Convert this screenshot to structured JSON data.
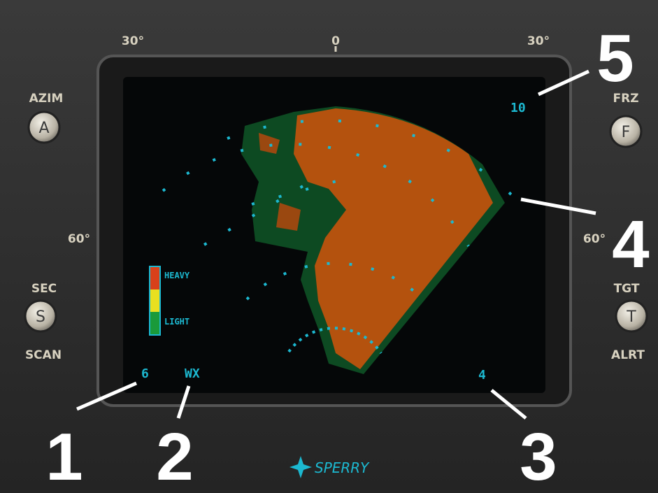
{
  "scale": {
    "left_30": "30°",
    "center": "0",
    "right_30": "30°",
    "left_60": "60°",
    "right_60": "60°"
  },
  "buttons": [
    {
      "top_label": "AZIM",
      "key": "A"
    },
    {
      "top_label": "FRZ",
      "key": "F"
    },
    {
      "top_label": "SEC",
      "key": "S",
      "bottom_label": "SCAN"
    },
    {
      "top_label": "TGT",
      "key": "T",
      "bottom_label": "ALRT"
    }
  ],
  "legend": {
    "heavy": "HEAVY",
    "light": "LIGHT"
  },
  "screen": {
    "range": "10",
    "tilt": "6",
    "mode": "WX",
    "gain": "4"
  },
  "callouts": [
    "1",
    "2",
    "3",
    "4",
    "5"
  ],
  "brand": "SPERRY"
}
